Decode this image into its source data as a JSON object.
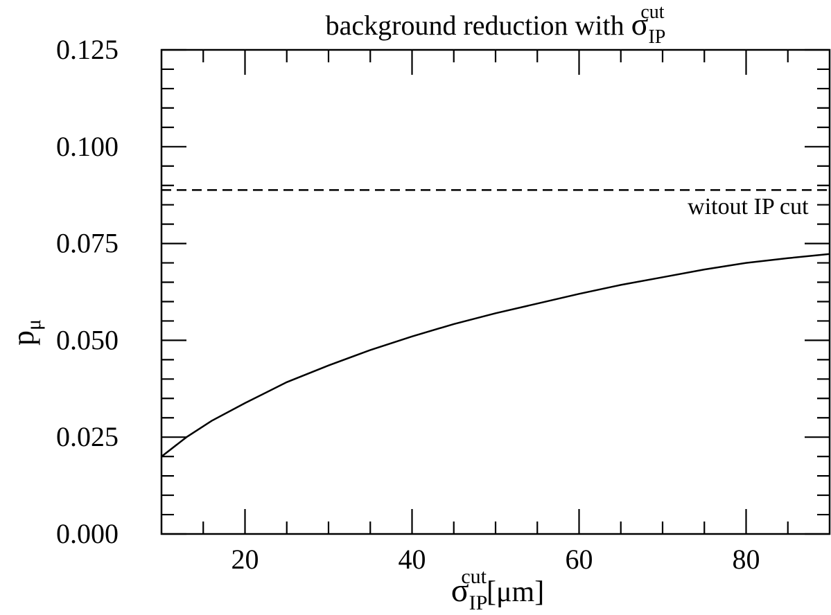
{
  "chart_data": {
    "type": "line",
    "title": {
      "text": "background reduction with ",
      "symbol": "σ",
      "sub": "IP",
      "sup": "cut"
    },
    "xlabel": {
      "symbol": "σ",
      "sub": "IP",
      "sup": "cut",
      "unit": "[μm]"
    },
    "ylabel": {
      "text": "p",
      "sub": "μ"
    },
    "xlim": [
      10,
      90
    ],
    "ylim": [
      0,
      0.125
    ],
    "x_ticks": [
      {
        "value": 20,
        "label": "20"
      },
      {
        "value": 40,
        "label": "40"
      },
      {
        "value": 60,
        "label": "60"
      },
      {
        "value": 80,
        "label": "80"
      }
    ],
    "y_ticks": [
      {
        "value": 0,
        "label": "0.000"
      },
      {
        "value": 0.025,
        "label": "0.025"
      },
      {
        "value": 0.05,
        "label": "0.050"
      },
      {
        "value": 0.075,
        "label": "0.075"
      },
      {
        "value": 0.1,
        "label": "0.100"
      },
      {
        "value": 0.125,
        "label": "0.125"
      }
    ],
    "grid": false,
    "series": [
      {
        "style": "solid",
        "color": "#000000",
        "points": [
          [
            10,
            0.02
          ],
          [
            13,
            0.025
          ],
          [
            16,
            0.0292
          ],
          [
            20,
            0.0338
          ],
          [
            25,
            0.0392
          ],
          [
            30,
            0.0435
          ],
          [
            35,
            0.0475
          ],
          [
            40,
            0.051
          ],
          [
            45,
            0.0542
          ],
          [
            50,
            0.057
          ],
          [
            55,
            0.0595
          ],
          [
            60,
            0.062
          ],
          [
            65,
            0.0643
          ],
          [
            70,
            0.0663
          ],
          [
            75,
            0.0683
          ],
          [
            80,
            0.07
          ],
          [
            85,
            0.0712
          ],
          [
            90,
            0.0723
          ]
        ]
      },
      {
        "style": "dashed",
        "color": "#000000",
        "points": [
          [
            10,
            0.0888
          ],
          [
            90,
            0.0888
          ]
        ]
      }
    ],
    "annotations": [
      {
        "text": "witout IP cut",
        "x": 73,
        "y": 0.0848
      }
    ]
  }
}
